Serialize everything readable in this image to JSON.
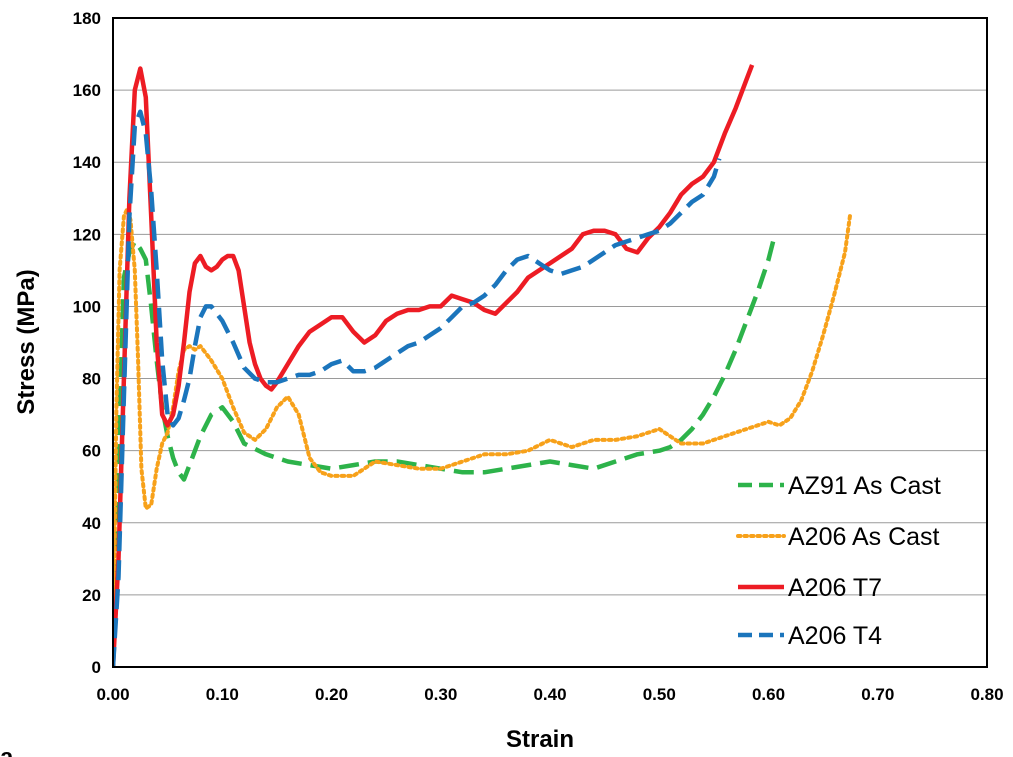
{
  "panel_label": "a",
  "chart_data": {
    "type": "line",
    "xlabel": "Strain",
    "ylabel": "Stress (MPa)",
    "xlim": [
      0,
      0.8
    ],
    "ylim": [
      0,
      180
    ],
    "x_ticks": [
      "0.00",
      "0.10",
      "0.20",
      "0.30",
      "0.40",
      "0.50",
      "0.60",
      "0.70",
      "0.80"
    ],
    "y_ticks": [
      "0",
      "20",
      "40",
      "60",
      "80",
      "100",
      "120",
      "140",
      "160",
      "180"
    ],
    "grid": "horizontal",
    "legend_position": "lower-right",
    "series": [
      {
        "name": "AZ91 As Cast",
        "color": "#2db34a",
        "style": "dashed",
        "x": [
          0.0,
          0.005,
          0.01,
          0.015,
          0.02,
          0.025,
          0.03,
          0.035,
          0.04,
          0.045,
          0.05,
          0.055,
          0.06,
          0.065,
          0.07,
          0.08,
          0.09,
          0.1,
          0.11,
          0.12,
          0.14,
          0.16,
          0.18,
          0.2,
          0.22,
          0.24,
          0.26,
          0.28,
          0.3,
          0.32,
          0.34,
          0.36,
          0.38,
          0.4,
          0.42,
          0.44,
          0.46,
          0.48,
          0.5,
          0.51,
          0.52,
          0.53,
          0.54,
          0.55,
          0.56,
          0.57,
          0.58,
          0.59,
          0.6,
          0.605
        ],
        "y": [
          0,
          60,
          108,
          115,
          118,
          116,
          113,
          100,
          85,
          72,
          64,
          58,
          54,
          52,
          56,
          64,
          70,
          72,
          68,
          62,
          59,
          57,
          56,
          55,
          56,
          57,
          57,
          56,
          55,
          54,
          54,
          55,
          56,
          57,
          56,
          55,
          57,
          59,
          60,
          61,
          63,
          66,
          70,
          75,
          81,
          88,
          96,
          104,
          113,
          119
        ]
      },
      {
        "name": "A206 As Cast",
        "color": "#f7a11a",
        "style": "dotted",
        "x": [
          0.0,
          0.003,
          0.006,
          0.01,
          0.013,
          0.016,
          0.02,
          0.023,
          0.026,
          0.03,
          0.035,
          0.04,
          0.045,
          0.05,
          0.055,
          0.06,
          0.065,
          0.07,
          0.075,
          0.08,
          0.085,
          0.09,
          0.1,
          0.11,
          0.12,
          0.13,
          0.14,
          0.15,
          0.16,
          0.17,
          0.18,
          0.19,
          0.2,
          0.22,
          0.24,
          0.26,
          0.28,
          0.3,
          0.32,
          0.34,
          0.36,
          0.38,
          0.4,
          0.42,
          0.44,
          0.46,
          0.48,
          0.5,
          0.52,
          0.54,
          0.56,
          0.58,
          0.6,
          0.61,
          0.62,
          0.63,
          0.64,
          0.65,
          0.66,
          0.67,
          0.675
        ],
        "y": [
          0,
          70,
          110,
          125,
          127,
          124,
          110,
          85,
          55,
          44,
          45,
          55,
          62,
          65,
          72,
          82,
          88,
          89,
          88,
          89,
          87,
          85,
          80,
          72,
          65,
          63,
          66,
          72,
          75,
          70,
          58,
          54,
          53,
          53,
          57,
          56,
          55,
          55,
          57,
          59,
          59,
          60,
          63,
          61,
          63,
          63,
          64,
          66,
          62,
          62,
          64,
          66,
          68,
          67,
          69,
          74,
          82,
          92,
          103,
          115,
          126
        ]
      },
      {
        "name": "A206 T7",
        "color": "#ed1c24",
        "style": "solid",
        "x": [
          0.0,
          0.005,
          0.01,
          0.015,
          0.02,
          0.025,
          0.03,
          0.035,
          0.04,
          0.045,
          0.05,
          0.055,
          0.06,
          0.065,
          0.07,
          0.075,
          0.08,
          0.085,
          0.09,
          0.095,
          0.1,
          0.105,
          0.11,
          0.115,
          0.12,
          0.125,
          0.13,
          0.135,
          0.14,
          0.145,
          0.15,
          0.16,
          0.17,
          0.18,
          0.19,
          0.2,
          0.21,
          0.22,
          0.23,
          0.24,
          0.25,
          0.26,
          0.27,
          0.28,
          0.29,
          0.3,
          0.31,
          0.32,
          0.33,
          0.34,
          0.35,
          0.36,
          0.37,
          0.38,
          0.39,
          0.4,
          0.41,
          0.42,
          0.43,
          0.44,
          0.45,
          0.46,
          0.47,
          0.48,
          0.49,
          0.5,
          0.51,
          0.52,
          0.53,
          0.54,
          0.55,
          0.56,
          0.57,
          0.58,
          0.585
        ],
        "y": [
          0,
          30,
          80,
          130,
          160,
          166,
          158,
          125,
          90,
          70,
          67,
          70,
          78,
          90,
          104,
          112,
          114,
          111,
          110,
          111,
          113,
          114,
          114,
          110,
          100,
          90,
          84,
          80,
          78,
          77,
          79,
          84,
          89,
          93,
          95,
          97,
          97,
          93,
          90,
          92,
          96,
          98,
          99,
          99,
          100,
          100,
          103,
          102,
          101,
          99,
          98,
          101,
          104,
          108,
          110,
          112,
          114,
          116,
          120,
          121,
          121,
          120,
          116,
          115,
          119,
          122,
          126,
          131,
          134,
          136,
          140,
          148,
          155,
          163,
          167
        ]
      },
      {
        "name": "A206 T4",
        "color": "#1b75bc",
        "style": "dashed",
        "x": [
          0.0,
          0.005,
          0.01,
          0.015,
          0.02,
          0.025,
          0.03,
          0.035,
          0.04,
          0.045,
          0.05,
          0.055,
          0.06,
          0.065,
          0.07,
          0.075,
          0.08,
          0.085,
          0.09,
          0.095,
          0.1,
          0.11,
          0.12,
          0.13,
          0.14,
          0.15,
          0.16,
          0.17,
          0.18,
          0.19,
          0.2,
          0.21,
          0.22,
          0.23,
          0.24,
          0.25,
          0.26,
          0.27,
          0.28,
          0.29,
          0.3,
          0.31,
          0.32,
          0.33,
          0.34,
          0.35,
          0.36,
          0.37,
          0.38,
          0.39,
          0.4,
          0.41,
          0.42,
          0.43,
          0.44,
          0.45,
          0.46,
          0.47,
          0.48,
          0.49,
          0.5,
          0.51,
          0.52,
          0.53,
          0.54,
          0.55,
          0.555
        ],
        "y": [
          0,
          25,
          75,
          125,
          150,
          154,
          148,
          132,
          110,
          85,
          70,
          67,
          69,
          74,
          80,
          89,
          97,
          100,
          100,
          98,
          96,
          90,
          83,
          80,
          79,
          79,
          80,
          81,
          81,
          82,
          84,
          85,
          82,
          82,
          83,
          85,
          87,
          89,
          90,
          92,
          94,
          97,
          100,
          101,
          103,
          106,
          110,
          113,
          114,
          112,
          110,
          109,
          110,
          111,
          113,
          115,
          117,
          118,
          119,
          120,
          121,
          123,
          126,
          129,
          131,
          136,
          141
        ]
      }
    ]
  }
}
